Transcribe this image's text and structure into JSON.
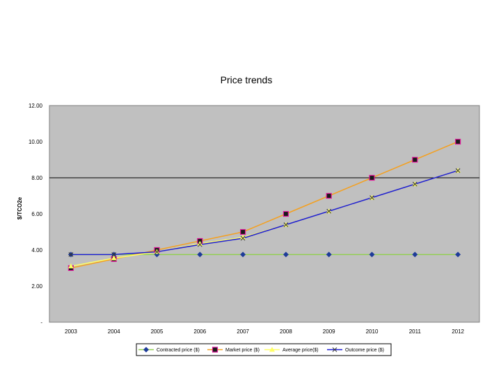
{
  "chart_data": {
    "type": "line",
    "title": "Price trends",
    "xlabel": "",
    "ylabel": "$/TCO2e",
    "categories": [
      "2003",
      "2004",
      "2005",
      "2006",
      "2007",
      "2008",
      "2009",
      "2010",
      "2011",
      "2012"
    ],
    "y_ticks": [
      "-",
      "2.00",
      "4.00",
      "6.00",
      "8.00",
      "10.00",
      "12.00"
    ],
    "ylim": [
      0,
      12
    ],
    "grid": false,
    "reference_line": 8,
    "plot_background": "#c0c0c0",
    "legend_position": "bottom",
    "series": [
      {
        "name": "Contracted price ($)",
        "color": "#92d050",
        "marker": "diamond",
        "marker_color": "#1f3c99",
        "values": [
          3.75,
          3.75,
          3.75,
          3.75,
          3.75,
          3.75,
          3.75,
          3.75,
          3.75,
          3.75
        ]
      },
      {
        "name": "Market price ($)",
        "color": "#f4a020",
        "marker": "square",
        "marker_color": "#1a1a1a",
        "marker_edge": "#e0189a",
        "values": [
          3.0,
          3.5,
          4.0,
          4.5,
          5.0,
          6.0,
          7.0,
          8.0,
          9.0,
          10.0
        ]
      },
      {
        "name": "Average price($)",
        "color": "#ffff66",
        "marker": "triangle",
        "marker_color": "#ffff66",
        "values": [
          3.1,
          3.55,
          3.9,
          4.35,
          4.7,
          5.4,
          6.15,
          6.9,
          7.65,
          8.4
        ]
      },
      {
        "name": "Outcome price ($)",
        "color": "#1c1cd6",
        "marker": "x",
        "marker_color": "#333333",
        "values": [
          3.75,
          3.75,
          3.9,
          4.3,
          4.65,
          5.4,
          6.15,
          6.9,
          7.65,
          8.4
        ]
      }
    ]
  }
}
